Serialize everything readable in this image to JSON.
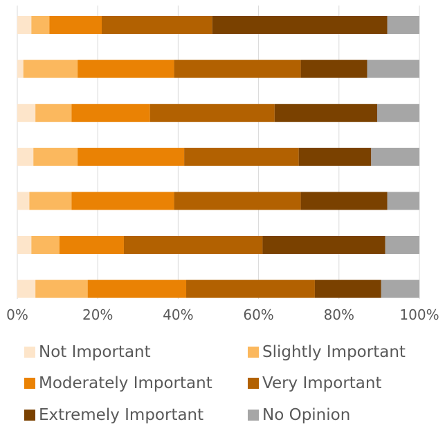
{
  "chart_data": {
    "type": "bar",
    "orientation": "horizontal",
    "stacked": "percent",
    "categories": [
      "",
      "",
      "",
      "",
      "",
      "",
      ""
    ],
    "series": [
      {
        "name": "Not Important",
        "color": "#FDE5CA",
        "values": [
          3.5,
          1.5,
          4.5,
          4.0,
          3.0,
          3.5,
          4.5
        ]
      },
      {
        "name": "Slightly Important",
        "color": "#FBB85E",
        "values": [
          4.5,
          13.5,
          9.0,
          11.0,
          10.5,
          7.0,
          13.0
        ]
      },
      {
        "name": "Moderately Important",
        "color": "#EA8204",
        "values": [
          13.0,
          24.0,
          19.5,
          26.5,
          25.5,
          16.0,
          24.5
        ]
      },
      {
        "name": "Very Important",
        "color": "#B26101",
        "values": [
          27.5,
          31.5,
          31.0,
          28.5,
          31.5,
          34.5,
          32.0
        ]
      },
      {
        "name": "Extremely Important",
        "color": "#7A4100",
        "values": [
          43.5,
          16.5,
          25.5,
          18.0,
          21.5,
          30.5,
          16.5
        ]
      },
      {
        "name": "No Opinion",
        "color": "#A6A6A6",
        "values": [
          8.0,
          13.0,
          10.5,
          12.0,
          8.0,
          8.5,
          9.5
        ]
      }
    ],
    "xlim": [
      0,
      100
    ],
    "xticks": [
      "0%",
      "20%",
      "40%",
      "60%",
      "80%",
      "100%"
    ],
    "grid": true,
    "legend_position": "bottom"
  }
}
